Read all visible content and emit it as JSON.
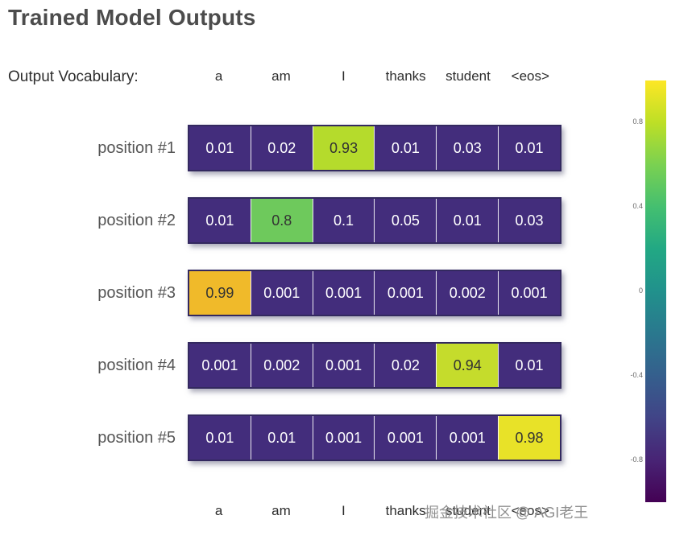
{
  "title": "Trained Model Outputs",
  "vocab_label": "Output Vocabulary:",
  "watermark": "掘金技术社区 @ AGI老王",
  "colors": {
    "title_text": "#4c4c4c",
    "row_label_text": "#555555",
    "header_text": "#2d2d2d",
    "low_cell": "#432d7c",
    "cell_text_dark": "#333333",
    "cell_text_light": "#ffffff"
  },
  "chart_data": {
    "type": "heatmap",
    "title": "Trained Model Outputs",
    "xlabel": "",
    "ylabel": "",
    "grid": "off",
    "legend_position": "colorbar-right",
    "x_categories": [
      "a",
      "am",
      "I",
      "thanks",
      "student",
      "<eos>"
    ],
    "y_categories": [
      "position #1",
      "position #2",
      "position #3",
      "position #4",
      "position #5"
    ],
    "values": [
      [
        0.01,
        0.02,
        0.93,
        0.01,
        0.03,
        0.01
      ],
      [
        0.01,
        0.8,
        0.1,
        0.05,
        0.01,
        0.03
      ],
      [
        0.99,
        0.001,
        0.001,
        0.001,
        0.002,
        0.001
      ],
      [
        0.001,
        0.002,
        0.001,
        0.02,
        0.94,
        0.01
      ],
      [
        0.01,
        0.01,
        0.001,
        0.001,
        0.001,
        0.98
      ]
    ],
    "value_labels": [
      [
        "0.01",
        "0.02",
        "0.93",
        "0.01",
        "0.03",
        "0.01"
      ],
      [
        "0.01",
        "0.8",
        "0.1",
        "0.05",
        "0.01",
        "0.03"
      ],
      [
        "0.99",
        "0.001",
        "0.001",
        "0.001",
        "0.002",
        "0.001"
      ],
      [
        "0.001",
        "0.002",
        "0.001",
        "0.02",
        "0.94",
        "0.01"
      ],
      [
        "0.01",
        "0.01",
        "0.001",
        "0.001",
        "0.001",
        "0.98"
      ]
    ],
    "cell_colors": [
      [
        "#432d7c",
        "#432d7c",
        "#b5db2c",
        "#432d7c",
        "#432d7c",
        "#432d7c"
      ],
      [
        "#432d7c",
        "#6ec95c",
        "#432d7c",
        "#432d7c",
        "#432d7c",
        "#432d7c"
      ],
      [
        "#f0ba2a",
        "#432d7c",
        "#432d7c",
        "#432d7c",
        "#432d7c",
        "#432d7c"
      ],
      [
        "#432d7c",
        "#432d7c",
        "#432d7c",
        "#432d7c",
        "#c5dc2c",
        "#432d7c"
      ],
      [
        "#432d7c",
        "#432d7c",
        "#432d7c",
        "#432d7c",
        "#432d7c",
        "#e8e228"
      ]
    ],
    "colorbar": {
      "range": [
        1,
        -1
      ],
      "ticks": [
        {
          "value": 0.8,
          "label": "0.8"
        },
        {
          "value": 0.4,
          "label": "0.4"
        },
        {
          "value": 0.0,
          "label": "0"
        },
        {
          "value": -0.4,
          "label": "-0.4"
        },
        {
          "value": -0.8,
          "label": "-0.8"
        }
      ],
      "gradient_stops": [
        "#fde725",
        "#bddf26",
        "#7ad151",
        "#44bf70",
        "#22a884",
        "#21918c",
        "#2a788e",
        "#355f8d",
        "#414487",
        "#482475",
        "#440154"
      ]
    }
  }
}
